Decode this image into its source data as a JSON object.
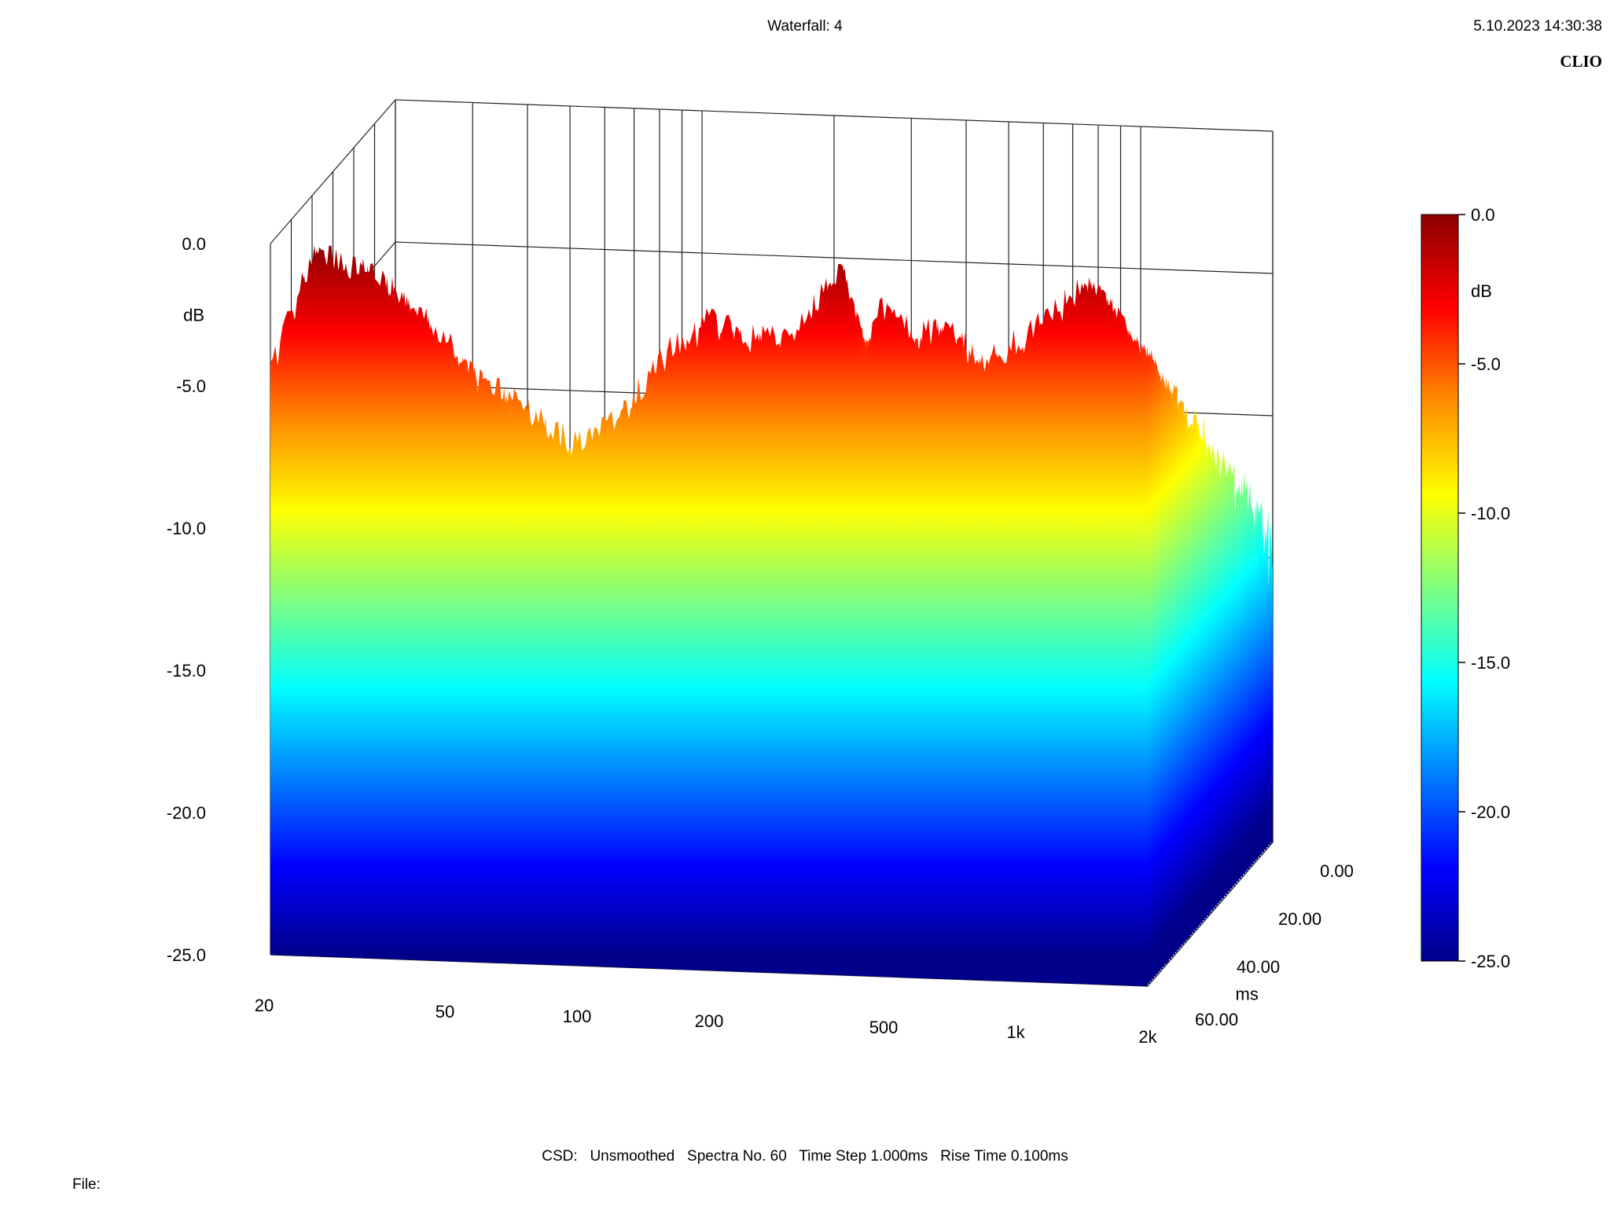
{
  "header": {
    "title": "Waterfall: 4",
    "datetime": "5.10.2023 14:30:38",
    "brand": "CLIO"
  },
  "footer": {
    "settings": "CSD:   Unsmoothed   Spectra No. 60   Time Step 1.000ms   Rise Time 0.100ms",
    "file_label": "File:"
  },
  "chart_data": {
    "type": "waterfall",
    "title": "Waterfall: 4",
    "x_axis": {
      "label": "",
      "scale": "log",
      "range": [
        20,
        2000
      ],
      "ticks": [
        "20",
        "50",
        "100",
        "200",
        "500",
        "1k",
        "2k"
      ]
    },
    "z_axis": {
      "label": "ms",
      "range": [
        0,
        60
      ],
      "ticks": [
        "0.00",
        "20.00",
        "40.00",
        "60.00"
      ]
    },
    "y_axis": {
      "label": "dB",
      "range": [
        -25,
        0
      ],
      "ticks": [
        "0.0",
        "-5.0",
        "-10.0",
        "-15.0",
        "-20.0",
        "-25.0"
      ]
    },
    "colorbar": {
      "label": "dB",
      "range": [
        -25,
        0
      ],
      "ticks": [
        "0.0",
        "-5.0",
        "-10.0",
        "-15.0",
        "-20.0",
        "-25.0"
      ],
      "stops": [
        "#8b0000",
        "#ff0000",
        "#ff8c00",
        "#ffff00",
        "#7fff7f",
        "#00ffff",
        "#0080ff",
        "#0000ff",
        "#00008b"
      ]
    },
    "grid": true,
    "first_spectrum_t0": {
      "freq_hz": [
        20,
        25,
        30,
        40,
        50,
        60,
        80,
        100,
        130,
        160,
        200,
        250,
        300,
        350,
        400,
        450,
        500,
        600,
        700,
        800,
        1000,
        1200,
        1500,
        1800,
        2000
      ],
      "level_db": [
        -4.5,
        -0.3,
        -0.6,
        -1.8,
        -3.2,
        -4.6,
        -5.8,
        -6.8,
        -5.4,
        -3.4,
        -2.2,
        -2.8,
        -2.6,
        -1.5,
        -0.2,
        -3.0,
        -1.4,
        -2.5,
        -2.0,
        -3.2,
        -2.6,
        -1.6,
        -0.3,
        -2.2,
        -3.0
      ]
    },
    "decay": {
      "freq_hz": [
        20,
        30,
        50,
        100,
        200,
        500,
        1000,
        2000
      ],
      "slope_db_per_ms": [
        0.35,
        0.3,
        0.33,
        0.38,
        0.36,
        0.33,
        0.34,
        0.2
      ],
      "floor_db": [
        -24,
        -24,
        -25,
        -25,
        -25,
        -25,
        -24,
        -22
      ]
    }
  }
}
